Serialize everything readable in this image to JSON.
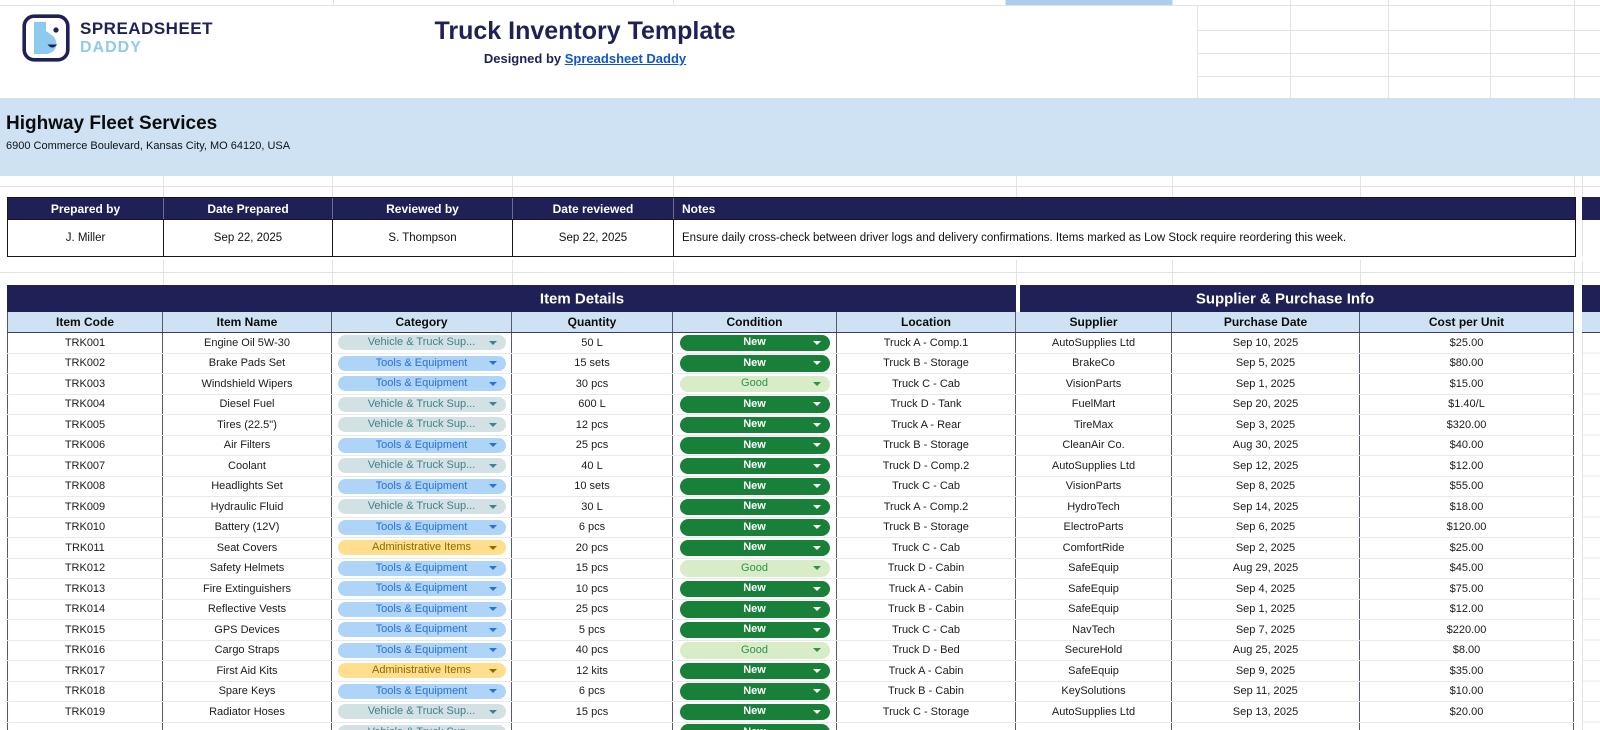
{
  "branding": {
    "logo_line1": "SPREADSHEET",
    "logo_line2": "DADDY",
    "title": "Truck Inventory Template",
    "designed_by_prefix": "Designed by",
    "designed_by_link": "Spreadsheet Daddy"
  },
  "company": {
    "name": "Highway Fleet Services",
    "address": "6900 Commerce Boulevard, Kansas City, MO 64120, USA"
  },
  "meta_table": {
    "headers": [
      "Prepared by",
      "Date Prepared",
      "Reviewed by",
      "Date reviewed",
      "Notes"
    ],
    "prepared_by": "J. Miller",
    "date_prepared": "Sep 22, 2025",
    "reviewed_by": "S. Thompson",
    "date_reviewed": "Sep 22, 2025",
    "notes": "Ensure daily cross-check between driver logs and delivery confirmations. Items marked as Low Stock require reordering this week."
  },
  "inventory": {
    "section_headers": [
      "Item Details",
      "Supplier & Purchase Info"
    ],
    "columns": [
      "Item Code",
      "Item Name",
      "Category",
      "Quantity",
      "Condition",
      "Location",
      "Supplier",
      "Purchase Date",
      "Cost per Unit"
    ],
    "rows": [
      {
        "code": "TRK001",
        "name": "Engine Oil 5W-30",
        "category": "Vehicle & Truck Sup...",
        "quantity": "50 L",
        "condition": "New",
        "location": "Truck A - Comp.1",
        "supplier": "AutoSupplies Ltd",
        "purchase_date": "Sep 10, 2025",
        "cost": "$25.00"
      },
      {
        "code": "TRK002",
        "name": "Brake Pads Set",
        "category": "Tools & Equipment",
        "quantity": "15 sets",
        "condition": "New",
        "location": "Truck B - Storage",
        "supplier": "BrakeCo",
        "purchase_date": "Sep 5, 2025",
        "cost": "$80.00"
      },
      {
        "code": "TRK003",
        "name": "Windshield Wipers",
        "category": "Tools & Equipment",
        "quantity": "30 pcs",
        "condition": "Good",
        "location": "Truck C - Cab",
        "supplier": "VisionParts",
        "purchase_date": "Sep 1, 2025",
        "cost": "$15.00"
      },
      {
        "code": "TRK004",
        "name": "Diesel Fuel",
        "category": "Vehicle & Truck Sup...",
        "quantity": "600 L",
        "condition": "New",
        "location": "Truck D - Tank",
        "supplier": "FuelMart",
        "purchase_date": "Sep 20, 2025",
        "cost": "$1.40/L"
      },
      {
        "code": "TRK005",
        "name": "Tires (22.5\")",
        "category": "Vehicle & Truck Sup...",
        "quantity": "12 pcs",
        "condition": "New",
        "location": "Truck A - Rear",
        "supplier": "TireMax",
        "purchase_date": "Sep 3, 2025",
        "cost": "$320.00"
      },
      {
        "code": "TRK006",
        "name": "Air Filters",
        "category": "Tools & Equipment",
        "quantity": "25 pcs",
        "condition": "New",
        "location": "Truck B - Storage",
        "supplier": "CleanAir Co.",
        "purchase_date": "Aug 30, 2025",
        "cost": "$40.00"
      },
      {
        "code": "TRK007",
        "name": "Coolant",
        "category": "Vehicle & Truck Sup...",
        "quantity": "40 L",
        "condition": "New",
        "location": "Truck D - Comp.2",
        "supplier": "AutoSupplies Ltd",
        "purchase_date": "Sep 12, 2025",
        "cost": "$12.00"
      },
      {
        "code": "TRK008",
        "name": "Headlights Set",
        "category": "Tools & Equipment",
        "quantity": "10 sets",
        "condition": "New",
        "location": "Truck C - Cab",
        "supplier": "VisionParts",
        "purchase_date": "Sep 8, 2025",
        "cost": "$55.00"
      },
      {
        "code": "TRK009",
        "name": "Hydraulic Fluid",
        "category": "Vehicle & Truck Sup...",
        "quantity": "30 L",
        "condition": "New",
        "location": "Truck A - Comp.2",
        "supplier": "HydroTech",
        "purchase_date": "Sep 14, 2025",
        "cost": "$18.00"
      },
      {
        "code": "TRK010",
        "name": "Battery (12V)",
        "category": "Tools & Equipment",
        "quantity": "6 pcs",
        "condition": "New",
        "location": "Truck B - Storage",
        "supplier": "ElectroParts",
        "purchase_date": "Sep 6, 2025",
        "cost": "$120.00"
      },
      {
        "code": "TRK011",
        "name": "Seat Covers",
        "category": "Administrative Items",
        "quantity": "20 pcs",
        "condition": "New",
        "location": "Truck C - Cab",
        "supplier": "ComfortRide",
        "purchase_date": "Sep 2, 2025",
        "cost": "$25.00"
      },
      {
        "code": "TRK012",
        "name": "Safety Helmets",
        "category": "Tools & Equipment",
        "quantity": "15 pcs",
        "condition": "Good",
        "location": "Truck D - Cabin",
        "supplier": "SafeEquip",
        "purchase_date": "Aug 29, 2025",
        "cost": "$45.00"
      },
      {
        "code": "TRK013",
        "name": "Fire Extinguishers",
        "category": "Tools & Equipment",
        "quantity": "10 pcs",
        "condition": "New",
        "location": "Truck A - Cabin",
        "supplier": "SafeEquip",
        "purchase_date": "Sep 4, 2025",
        "cost": "$75.00"
      },
      {
        "code": "TRK014",
        "name": "Reflective Vests",
        "category": "Tools & Equipment",
        "quantity": "25 pcs",
        "condition": "New",
        "location": "Truck B - Cabin",
        "supplier": "SafeEquip",
        "purchase_date": "Sep 1, 2025",
        "cost": "$12.00"
      },
      {
        "code": "TRK015",
        "name": "GPS Devices",
        "category": "Tools & Equipment",
        "quantity": "5 pcs",
        "condition": "New",
        "location": "Truck C - Cab",
        "supplier": "NavTech",
        "purchase_date": "Sep 7, 2025",
        "cost": "$220.00"
      },
      {
        "code": "TRK016",
        "name": "Cargo Straps",
        "category": "Tools & Equipment",
        "quantity": "40 pcs",
        "condition": "Good",
        "location": "Truck D - Bed",
        "supplier": "SecureHold",
        "purchase_date": "Aug 25, 2025",
        "cost": "$8.00"
      },
      {
        "code": "TRK017",
        "name": "First Aid Kits",
        "category": "Administrative Items",
        "quantity": "12 kits",
        "condition": "New",
        "location": "Truck A - Cabin",
        "supplier": "SafeEquip",
        "purchase_date": "Sep 9, 2025",
        "cost": "$35.00"
      },
      {
        "code": "TRK018",
        "name": "Spare Keys",
        "category": "Tools & Equipment",
        "quantity": "6 pcs",
        "condition": "New",
        "location": "Truck B - Cabin",
        "supplier": "KeySolutions",
        "purchase_date": "Sep 11, 2025",
        "cost": "$10.00"
      },
      {
        "code": "TRK019",
        "name": "Radiator Hoses",
        "category": "Vehicle & Truck Sup...",
        "quantity": "15 pcs",
        "condition": "New",
        "location": "Truck C - Storage",
        "supplier": "AutoSupplies Ltd",
        "purchase_date": "Sep 13, 2025",
        "cost": "$20.00"
      }
    ],
    "partial_row": {
      "category": "Vehicle & Truck Sup...",
      "condition": "New"
    }
  },
  "colors": {
    "navy": "#1f2056",
    "header_blue": "#cfe2f3",
    "link_blue": "#1155cc",
    "logo_blue": "#8ecaf0",
    "chip_teal_bg": "#d2e2e4",
    "chip_teal_text": "#41808d",
    "chip_blue_bg": "#aed4f7",
    "chip_blue_text": "#2b71d9",
    "chip_yellow_bg": "#ffdf8e",
    "chip_yellow_text": "#8f6a00",
    "cond_new_bg": "#188038",
    "cond_good_bg": "#d8ecc8",
    "cond_good_text": "#2e9348"
  }
}
